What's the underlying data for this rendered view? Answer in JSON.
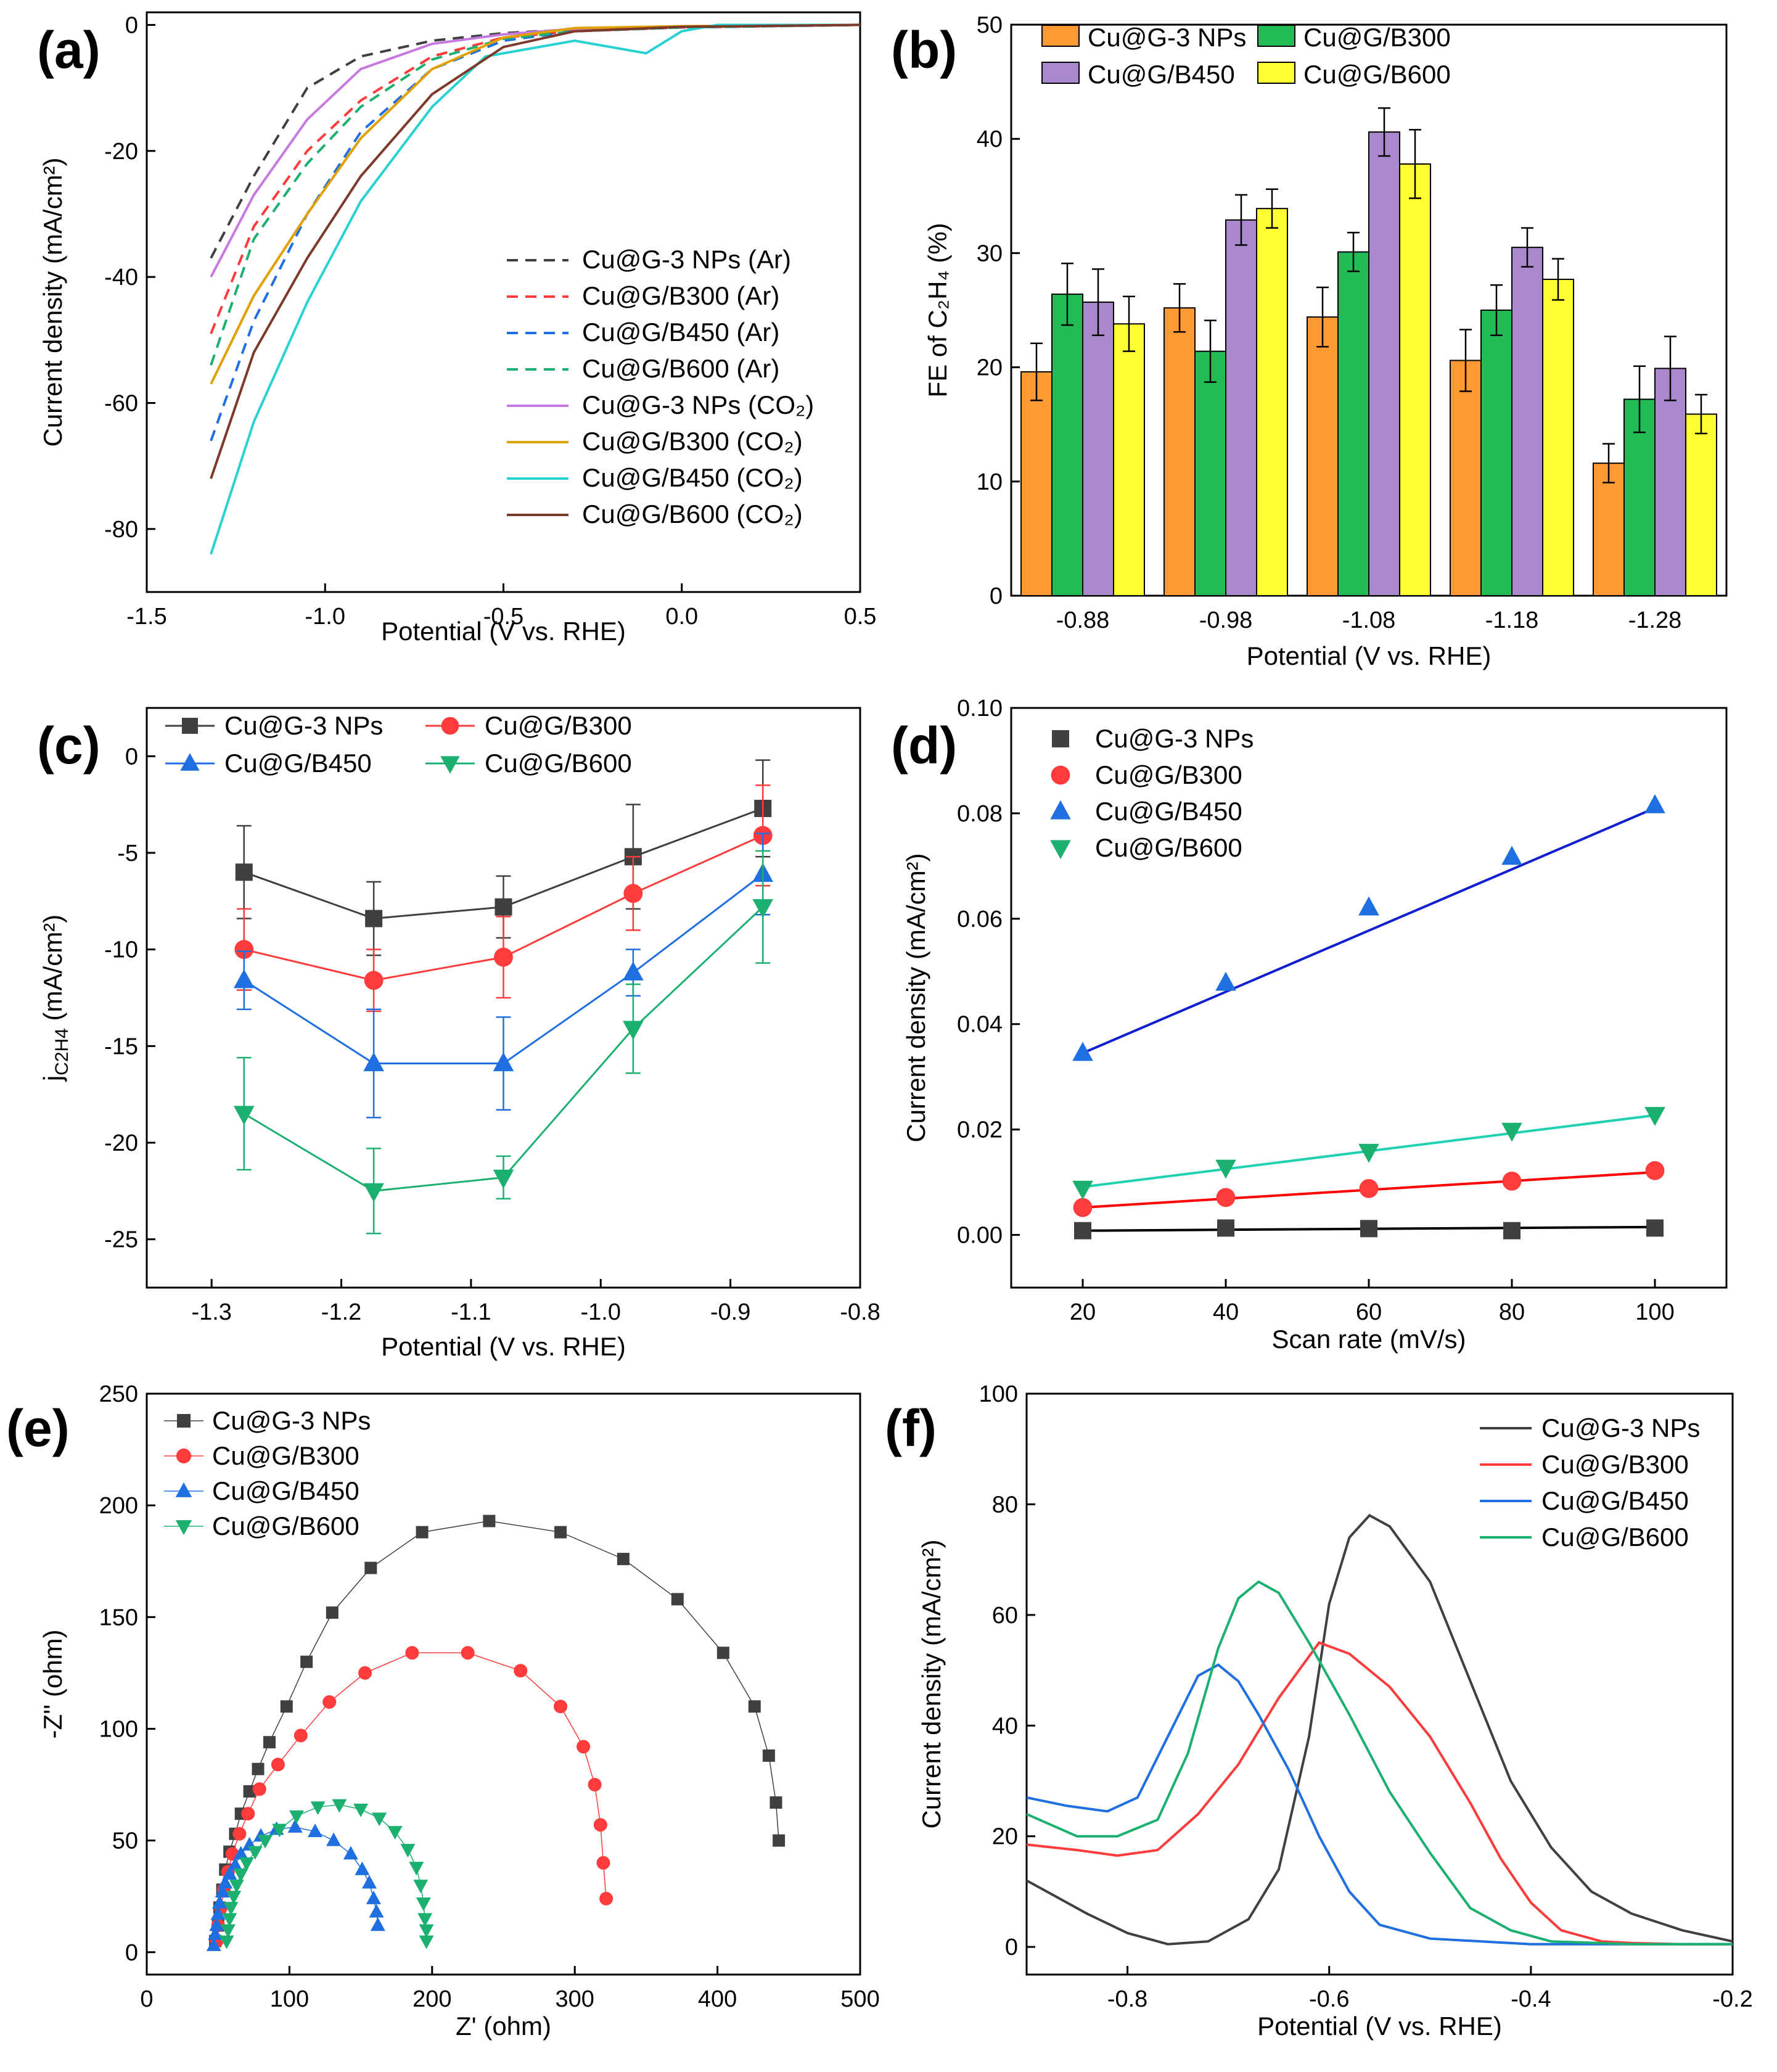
{
  "colors": {
    "black": "#404040",
    "red": "#ff3b3b",
    "blue": "#1f6fe0",
    "green": "#1cb070",
    "violet": "#c67ae0",
    "orange": "#e0a000",
    "cyan": "#28d2d2",
    "brown": "#7d3a2a",
    "bar_orange": "#ff9933",
    "bar_green": "#22bb55",
    "bar_purple": "#aa88cc",
    "bar_yellow": "#ffff33",
    "fit_blue": "#1020d0",
    "fit_cyan": "#20d0b0",
    "fit_red": "#ff0000",
    "fit_black": "#000000"
  },
  "chart_data": [
    {
      "id": "a",
      "panel_label": "(a)",
      "type": "line",
      "xlabel": "Potential (V vs. RHE)",
      "ylabel": "Current density (mA/cm²)",
      "xlim": [
        -1.5,
        0.5
      ],
      "ylim": [
        -90,
        2
      ],
      "xticks": [
        -1.5,
        -1.0,
        -0.5,
        0.0,
        0.5
      ],
      "xtick_labels": [
        "-1.5",
        "-1.0",
        "-0.5",
        "0.0",
        "0.5"
      ],
      "yticks": [
        0,
        -20,
        -40,
        -60,
        -80
      ],
      "ytick_labels": [
        "0",
        "-20",
        "-40",
        "-60",
        "-80"
      ],
      "legend_position": "center-right",
      "series": [
        {
          "name": "Cu@G-3 NPs (Ar)",
          "color": "#404040",
          "dash": true,
          "x": [
            -1.32,
            -1.2,
            -1.05,
            -0.9,
            -0.7,
            -0.5,
            -0.3,
            0,
            0.5
          ],
          "y": [
            -37,
            -24,
            -10,
            -5,
            -2.5,
            -1.3,
            -0.7,
            -0.3,
            0
          ]
        },
        {
          "name": "Cu@G/B300 (Ar)",
          "color": "#ff3b3b",
          "dash": true,
          "x": [
            -1.32,
            -1.2,
            -1.05,
            -0.9,
            -0.7,
            -0.5,
            -0.3,
            0,
            0.5
          ],
          "y": [
            -49,
            -32,
            -20,
            -12,
            -5,
            -2,
            -1,
            -0.4,
            0
          ]
        },
        {
          "name": "Cu@G/B450 (Ar)",
          "color": "#1f6fe0",
          "dash": true,
          "x": [
            -1.32,
            -1.2,
            -1.05,
            -0.9,
            -0.7,
            -0.5,
            -0.3,
            0,
            0.5
          ],
          "y": [
            -66,
            -47,
            -30,
            -17,
            -7,
            -2.5,
            -1,
            -0.4,
            0
          ]
        },
        {
          "name": "Cu@G/B600 (Ar)",
          "color": "#1cb070",
          "dash": true,
          "x": [
            -1.32,
            -1.2,
            -1.05,
            -0.9,
            -0.7,
            -0.5,
            -0.3,
            0,
            0.5
          ],
          "y": [
            -54,
            -34,
            -22,
            -13,
            -5.5,
            -2.2,
            -1,
            -0.4,
            0
          ]
        },
        {
          "name": "Cu@G-3 NPs (CO₂)",
          "color": "#c67ae0",
          "dash": false,
          "x": [
            -1.32,
            -1.2,
            -1.05,
            -0.9,
            -0.7,
            -0.5,
            -0.3,
            0,
            0.5
          ],
          "y": [
            -40,
            -27,
            -15,
            -7,
            -3,
            -1.5,
            -0.6,
            -0.2,
            0
          ]
        },
        {
          "name": "Cu@G/B300 (CO₂)",
          "color": "#e0a000",
          "dash": false,
          "x": [
            -1.32,
            -1.2,
            -1.05,
            -0.9,
            -0.7,
            -0.5,
            -0.3,
            0,
            0.5
          ],
          "y": [
            -57,
            -43,
            -30,
            -18,
            -7,
            -2,
            -0.5,
            -0.2,
            0
          ]
        },
        {
          "name": "Cu@G/B450 (CO₂)",
          "color": "#28d2d2",
          "dash": false,
          "x": [
            -1.32,
            -1.2,
            -1.05,
            -0.9,
            -0.7,
            -0.55,
            -0.3,
            -0.1,
            0,
            0.1,
            0.5
          ],
          "y": [
            -84,
            -63,
            -44,
            -28,
            -13,
            -5,
            -2.5,
            -4.5,
            -1,
            0,
            0
          ]
        },
        {
          "name": "Cu@G/B600 (CO₂)",
          "color": "#7d3a2a",
          "dash": false,
          "x": [
            -1.32,
            -1.2,
            -1.05,
            -0.9,
            -0.7,
            -0.5,
            -0.3,
            0,
            0.5
          ],
          "y": [
            -72,
            -52,
            -37,
            -24,
            -11,
            -3.5,
            -1,
            -0.3,
            0
          ]
        }
      ]
    },
    {
      "id": "b",
      "panel_label": "(b)",
      "type": "bar",
      "xlabel": "Potential (V vs. RHE)",
      "ylabel": "FE of C₂H₄ (%)",
      "ylim": [
        0,
        50
      ],
      "yticks": [
        0,
        10,
        20,
        30,
        40,
        50
      ],
      "ytick_labels": [
        "0",
        "10",
        "20",
        "30",
        "40",
        "50"
      ],
      "legend_position": "top-left",
      "categories": [
        "-0.88",
        "-0.98",
        "-1.08",
        "-1.18",
        "-1.28"
      ],
      "series": [
        {
          "name": "Cu@G-3 NPs",
          "color": "#ff9933",
          "values": [
            19.6,
            25.2,
            24.4,
            20.6,
            11.6
          ],
          "errors": [
            2.5,
            2.1,
            2.6,
            2.7,
            1.7
          ]
        },
        {
          "name": "Cu@G/B300",
          "color": "#22bb55",
          "values": [
            26.4,
            21.4,
            30.1,
            25,
            17.2
          ],
          "errors": [
            2.7,
            2.7,
            1.7,
            2.2,
            2.9
          ]
        },
        {
          "name": "Cu@G/B450",
          "color": "#aa88cc",
          "values": [
            25.7,
            32.9,
            40.6,
            30.5,
            19.9
          ],
          "errors": [
            2.9,
            2.2,
            2.1,
            1.7,
            2.8
          ]
        },
        {
          "name": "Cu@G/B600",
          "color": "#ffff33",
          "values": [
            23.8,
            33.9,
            37.8,
            27.7,
            15.9
          ],
          "errors": [
            2.4,
            1.7,
            3,
            1.8,
            1.7
          ]
        }
      ]
    },
    {
      "id": "c",
      "panel_label": "(c)",
      "type": "line",
      "xlabel": "Potential (V vs. RHE)",
      "ylabel": "j",
      "ylabel_sub": "C2H4",
      "ylabel_tail": " (mA/cm²)",
      "xlim": [
        -1.35,
        -0.8
      ],
      "ylim": [
        -27.5,
        2.5
      ],
      "xticks": [
        -1.3,
        -1.2,
        -1.1,
        -1.0,
        -0.9,
        -0.8
      ],
      "xtick_labels": [
        "-1.3",
        "-1.2",
        "-1.1",
        "-1.0",
        "-0.9",
        "-0.8"
      ],
      "yticks": [
        0,
        -5,
        -10,
        -15,
        -20,
        -25
      ],
      "ytick_labels": [
        "0",
        "-5",
        "-10",
        "-15",
        "-20",
        "-25"
      ],
      "legend_position": "top-left",
      "x": [
        -1.275,
        -1.175,
        -1.075,
        -0.975,
        -0.875
      ],
      "series": [
        {
          "name": "Cu@G-3 NPs",
          "color": "#404040",
          "marker": "square",
          "values": [
            -6,
            -8.4,
            -7.8,
            -5.2,
            -2.7
          ],
          "errors": [
            2.4,
            1.9,
            1.6,
            2.7,
            2.5
          ]
        },
        {
          "name": "Cu@G/B300",
          "color": "#ff3b3b",
          "marker": "circle",
          "values": [
            -10,
            -11.6,
            -10.4,
            -7.1,
            -4.1
          ],
          "errors": [
            2.1,
            1.6,
            2.1,
            1.9,
            2.6
          ]
        },
        {
          "name": "Cu@G/B450",
          "color": "#1f6fe0",
          "marker": "triangle-up",
          "values": [
            -11.6,
            -15.9,
            -15.9,
            -11.2,
            -6.1
          ],
          "errors": [
            1.5,
            2.8,
            2.4,
            1.2,
            2.1
          ]
        },
        {
          "name": "Cu@G/B600",
          "color": "#1cb070",
          "marker": "triangle-down",
          "values": [
            -18.5,
            -22.5,
            -21.8,
            -14.1,
            -7.8
          ],
          "errors": [
            2.9,
            2.2,
            1.1,
            2.3,
            2.9
          ]
        }
      ]
    },
    {
      "id": "d",
      "panel_label": "(d)",
      "type": "scatter",
      "xlabel": "Scan rate (mV/s)",
      "ylabel": "Current density (mA/cm²)",
      "xlim": [
        10,
        110
      ],
      "ylim": [
        -0.01,
        0.1
      ],
      "xticks": [
        20,
        40,
        60,
        80,
        100
      ],
      "xtick_labels": [
        "20",
        "40",
        "60",
        "80",
        "100"
      ],
      "yticks": [
        0,
        0.02,
        0.04,
        0.06,
        0.08,
        0.1
      ],
      "ytick_labels": [
        "0.00",
        "0.02",
        "0.04",
        "0.06",
        "0.08",
        "0.10"
      ],
      "legend_position": "top-left",
      "x": [
        20,
        40,
        60,
        80,
        100
      ],
      "series": [
        {
          "name": "Cu@G-3 NPs",
          "color": "#404040",
          "fit_color": "#000000",
          "marker": "square",
          "values": [
            0.0008,
            0.0013,
            0.0012,
            0.0008,
            0.0013
          ],
          "fit": [
            0.0008,
            0.0015
          ]
        },
        {
          "name": "Cu@G/B300",
          "color": "#ff3b3b",
          "fit_color": "#ff0000",
          "marker": "circle",
          "values": [
            0.0052,
            0.0071,
            0.0088,
            0.0102,
            0.0122
          ],
          "fit": [
            0.0052,
            0.0119
          ]
        },
        {
          "name": "Cu@G/B450",
          "color": "#1f6fe0",
          "fit_color": "#1020d0",
          "marker": "triangle-up",
          "values": [
            0.0345,
            0.0478,
            0.0621,
            0.0717,
            0.0815
          ],
          "fit": [
            0.0345,
            0.081
          ]
        },
        {
          "name": "Cu@G/B600",
          "color": "#1cb070",
          "fit_color": "#20d0b0",
          "marker": "triangle-down",
          "values": [
            0.0088,
            0.0128,
            0.0158,
            0.0198,
            0.0228
          ],
          "fit": [
            0.0091,
            0.0227
          ]
        }
      ]
    },
    {
      "id": "e",
      "panel_label": "(e)",
      "type": "scatter",
      "xlabel": "Z' (ohm)",
      "ylabel": "-Z'' (ohm)",
      "xlim": [
        0,
        500
      ],
      "ylim": [
        -10,
        250
      ],
      "xticks": [
        0,
        100,
        200,
        300,
        400,
        500
      ],
      "xtick_labels": [
        "0",
        "100",
        "200",
        "300",
        "400",
        "500"
      ],
      "yticks": [
        0,
        50,
        100,
        150,
        200,
        250
      ],
      "ytick_labels": [
        "0",
        "50",
        "100",
        "150",
        "200",
        "250"
      ],
      "legend_position": "top-left",
      "series": [
        {
          "name": "Cu@G-3 NPs",
          "color": "#404040",
          "marker": "square",
          "x": [
            48,
            50,
            51,
            53,
            55,
            58,
            62,
            66,
            72,
            78,
            86,
            98,
            112,
            130,
            157,
            193,
            240,
            290,
            334,
            372,
            404,
            426,
            436,
            441,
            443
          ],
          "y": [
            5,
            12,
            20,
            28,
            37,
            45,
            53,
            62,
            72,
            82,
            94,
            110,
            130,
            152,
            172,
            188,
            193,
            188,
            176,
            158,
            134,
            110,
            88,
            67,
            50
          ]
        },
        {
          "name": "Cu@G/B300",
          "color": "#ff3b3b",
          "marker": "circle",
          "x": [
            49,
            50,
            52,
            54,
            57,
            60,
            65,
            71,
            79,
            92,
            108,
            128,
            153,
            186,
            225,
            262,
            290,
            306,
            314,
            318,
            320,
            322
          ],
          "y": [
            5,
            12,
            20,
            28,
            36,
            44,
            53,
            62,
            73,
            84,
            97,
            112,
            125,
            134,
            134,
            126,
            110,
            92,
            75,
            57,
            40,
            24
          ]
        },
        {
          "name": "Cu@G/B450",
          "color": "#1f6fe0",
          "marker": "triangle-up",
          "x": [
            47,
            48,
            49,
            50,
            51,
            53,
            55,
            58,
            62,
            66,
            72,
            80,
            91,
            104,
            118,
            131,
            143,
            151,
            156,
            159,
            161,
            162
          ],
          "y": [
            3,
            8,
            12,
            17,
            22,
            27,
            31,
            35,
            39,
            44,
            48,
            52,
            55,
            56,
            54,
            50,
            44,
            37,
            31,
            24,
            18,
            12
          ]
        },
        {
          "name": "Cu@G/B600",
          "color": "#1cb070",
          "marker": "triangle-down",
          "x": [
            56,
            57,
            58,
            59,
            61,
            63,
            66,
            70,
            76,
            83,
            93,
            105,
            120,
            135,
            150,
            163,
            174,
            183,
            189,
            192,
            194,
            195,
            196,
            196
          ],
          "y": [
            5,
            10,
            15,
            20,
            25,
            30,
            35,
            40,
            45,
            50,
            55,
            61,
            65,
            66,
            64,
            60,
            54,
            46,
            38,
            30,
            22,
            15,
            10,
            5
          ]
        }
      ]
    },
    {
      "id": "f",
      "panel_label": "(f)",
      "type": "line",
      "xlabel": "Potential (V vs. RHE)",
      "ylabel": "Current density (mA/cm²)",
      "xlim": [
        -0.9,
        -0.2
      ],
      "ylim": [
        -5,
        100
      ],
      "xticks": [
        -0.8,
        -0.6,
        -0.4,
        -0.2
      ],
      "xtick_labels": [
        "-0.8",
        "-0.6",
        "-0.4",
        "-0.2"
      ],
      "yticks": [
        0,
        20,
        40,
        60,
        80,
        100
      ],
      "ytick_labels": [
        "0",
        "20",
        "40",
        "60",
        "80",
        "100"
      ],
      "legend_position": "top-right",
      "series": [
        {
          "name": "Cu@G-3 NPs",
          "color": "#404040",
          "x": [
            -0.9,
            -0.87,
            -0.84,
            -0.8,
            -0.76,
            -0.72,
            -0.68,
            -0.65,
            -0.62,
            -0.6,
            -0.58,
            -0.56,
            -0.54,
            -0.5,
            -0.46,
            -0.42,
            -0.38,
            -0.34,
            -0.3,
            -0.25,
            -0.2
          ],
          "y": [
            12,
            9,
            6,
            2.5,
            0.5,
            1,
            5,
            14,
            38,
            62,
            74,
            78,
            76,
            66,
            48,
            30,
            18,
            10,
            6,
            3,
            1
          ]
        },
        {
          "name": "Cu@G/B300",
          "color": "#ff3b3b",
          "x": [
            -0.9,
            -0.85,
            -0.81,
            -0.77,
            -0.73,
            -0.69,
            -0.65,
            -0.61,
            -0.58,
            -0.54,
            -0.5,
            -0.46,
            -0.43,
            -0.4,
            -0.37,
            -0.33,
            -0.3,
            -0.25,
            -0.2
          ],
          "y": [
            18.5,
            17.5,
            16.5,
            17.5,
            24,
            33,
            45,
            55,
            53,
            47,
            38,
            26,
            16,
            8,
            3,
            1,
            0.7,
            0.5,
            0.5
          ]
        },
        {
          "name": "Cu@G/B450",
          "color": "#1f6fe0",
          "x": [
            -0.9,
            -0.86,
            -0.82,
            -0.79,
            -0.76,
            -0.73,
            -0.71,
            -0.69,
            -0.67,
            -0.64,
            -0.61,
            -0.58,
            -0.55,
            -0.5,
            -0.4,
            -0.3,
            -0.2
          ],
          "y": [
            27,
            25.5,
            24.5,
            27,
            38,
            49,
            51,
            48,
            42,
            32,
            20,
            10,
            4,
            1.5,
            0.5,
            0.5,
            0.5
          ]
        },
        {
          "name": "Cu@G/B600",
          "color": "#1cb070",
          "x": [
            -0.9,
            -0.85,
            -0.81,
            -0.77,
            -0.74,
            -0.71,
            -0.69,
            -0.67,
            -0.65,
            -0.62,
            -0.58,
            -0.54,
            -0.5,
            -0.46,
            -0.42,
            -0.38,
            -0.3,
            -0.2
          ],
          "y": [
            24,
            20,
            20,
            23,
            35,
            54,
            63,
            66,
            64,
            55,
            42,
            28,
            17,
            7,
            3,
            1,
            0.5,
            0.5
          ]
        }
      ]
    }
  ]
}
